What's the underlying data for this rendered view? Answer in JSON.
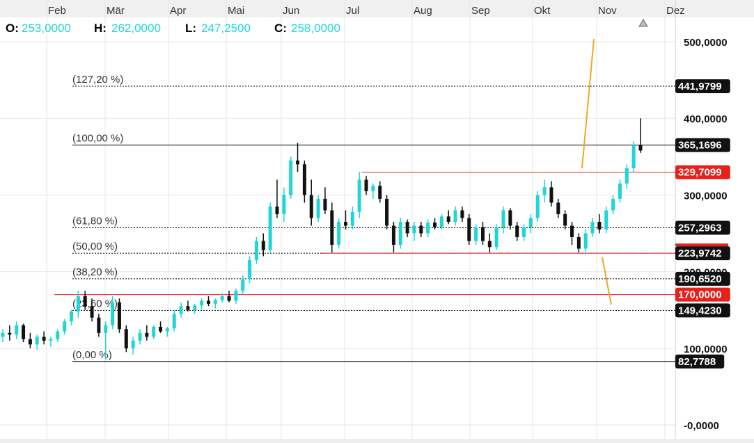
{
  "ohlc": {
    "open_label": "O:",
    "open_value": "253,0000",
    "high_label": "H:",
    "high_value": "262,0000",
    "low_label": "L:",
    "low_value": "247,2500",
    "close_label": "C:",
    "close_value": "258,0000"
  },
  "chart_data": {
    "type": "candlestick",
    "x_axis": {
      "months": [
        "Feb",
        "Mär",
        "Apr",
        "Mai",
        "Jun",
        "Jul",
        "Aug",
        "Sep",
        "Okt",
        "Nov",
        "Dez"
      ]
    },
    "y_axis": {
      "range": [
        0,
        520
      ],
      "ticks": [
        {
          "value": 500,
          "label": "500,0000"
        },
        {
          "value": 400,
          "label": "400,0000"
        },
        {
          "value": 300,
          "label": "300,0000"
        },
        {
          "value": 200,
          "label": "200,0000"
        },
        {
          "value": 100,
          "label": "100,0000"
        },
        {
          "value": 0,
          "label": "-0,0000"
        }
      ]
    },
    "fibonacci_levels": [
      {
        "label": "(127,20 %)",
        "value": 441.9799,
        "tag": "441,9799"
      },
      {
        "label": "(100,00 %)",
        "value": 365.1696,
        "tag": "365,1696"
      },
      {
        "label": "(61,80 %)",
        "value": 257.2963,
        "tag": "257,2963"
      },
      {
        "label": "(50,00 %)",
        "value": 223.9742,
        "tag": "223,9742"
      },
      {
        "label": "(38,20 %)",
        "value": 190.652,
        "tag": "190,6520"
      },
      {
        "label": "(23,60 %)",
        "value": 149.423,
        "tag": "149,4230"
      },
      {
        "label": "(0,00 %)",
        "value": 82.7788,
        "tag": "82,7788"
      }
    ],
    "horizontal_lines": [
      {
        "value": 329.7099,
        "tag": "329,7099",
        "color": "#e8201c"
      },
      {
        "value": 223.9742,
        "tag": "",
        "color": "#e8201c"
      },
      {
        "value": 170.0,
        "tag": "170,0000",
        "color": "#e8201c"
      }
    ],
    "colors": {
      "up": "#1fd6d6",
      "down": "#111111",
      "fib_line": "#000000",
      "red_line": "#e8201c",
      "trend_line": "#f5a623",
      "tag_dark": "#111111",
      "tag_red": "#e8201c",
      "grid": "#e6e6e6"
    },
    "candles": [
      [
        0.0,
        115,
        125,
        108,
        120
      ],
      [
        0.01,
        120,
        130,
        110,
        118
      ],
      [
        0.02,
        118,
        135,
        112,
        130
      ],
      [
        0.03,
        130,
        132,
        108,
        112
      ],
      [
        0.04,
        112,
        120,
        100,
        105
      ],
      [
        0.05,
        105,
        118,
        98,
        115
      ],
      [
        0.06,
        115,
        122,
        105,
        110
      ],
      [
        0.07,
        110,
        115,
        102,
        112
      ],
      [
        0.08,
        112,
        125,
        108,
        122
      ],
      [
        0.09,
        122,
        138,
        118,
        135
      ],
      [
        0.1,
        135,
        150,
        130,
        148
      ],
      [
        0.11,
        148,
        175,
        140,
        168
      ],
      [
        0.12,
        168,
        175,
        150,
        155
      ],
      [
        0.13,
        155,
        165,
        135,
        140
      ],
      [
        0.14,
        140,
        145,
        115,
        120
      ],
      [
        0.15,
        120,
        135,
        85,
        130
      ],
      [
        0.16,
        130,
        168,
        125,
        160
      ],
      [
        0.17,
        160,
        165,
        120,
        125
      ],
      [
        0.18,
        125,
        130,
        95,
        100
      ],
      [
        0.19,
        100,
        115,
        92,
        110
      ],
      [
        0.2,
        110,
        125,
        105,
        120
      ],
      [
        0.21,
        120,
        130,
        110,
        115
      ],
      [
        0.22,
        115,
        130,
        112,
        128
      ],
      [
        0.23,
        128,
        135,
        120,
        122
      ],
      [
        0.24,
        122,
        128,
        115,
        126
      ],
      [
        0.25,
        126,
        150,
        122,
        145
      ],
      [
        0.26,
        145,
        160,
        140,
        155
      ],
      [
        0.27,
        155,
        162,
        148,
        150
      ],
      [
        0.28,
        150,
        158,
        145,
        156
      ],
      [
        0.29,
        156,
        165,
        150,
        162
      ],
      [
        0.3,
        162,
        168,
        155,
        158
      ],
      [
        0.31,
        158,
        165,
        152,
        163
      ],
      [
        0.32,
        163,
        172,
        160,
        168
      ],
      [
        0.33,
        168,
        175,
        160,
        162
      ],
      [
        0.34,
        162,
        178,
        158,
        175
      ],
      [
        0.35,
        175,
        195,
        170,
        190
      ],
      [
        0.36,
        190,
        220,
        185,
        215
      ],
      [
        0.37,
        215,
        245,
        210,
        240
      ],
      [
        0.38,
        240,
        250,
        220,
        228
      ],
      [
        0.39,
        228,
        290,
        225,
        285
      ],
      [
        0.4,
        285,
        320,
        270,
        275
      ],
      [
        0.41,
        275,
        310,
        265,
        300
      ],
      [
        0.42,
        300,
        350,
        295,
        345
      ],
      [
        0.43,
        345,
        368,
        330,
        340
      ],
      [
        0.44,
        340,
        345,
        290,
        300
      ],
      [
        0.45,
        300,
        320,
        260,
        270
      ],
      [
        0.46,
        270,
        300,
        265,
        295
      ],
      [
        0.47,
        295,
        310,
        275,
        280
      ],
      [
        0.48,
        280,
        290,
        225,
        235
      ],
      [
        0.49,
        235,
        270,
        230,
        265
      ],
      [
        0.5,
        265,
        280,
        255,
        260
      ],
      [
        0.51,
        260,
        285,
        255,
        278
      ],
      [
        0.52,
        278,
        330,
        270,
        320
      ],
      [
        0.53,
        320,
        325,
        300,
        305
      ],
      [
        0.54,
        305,
        315,
        295,
        312
      ],
      [
        0.55,
        312,
        318,
        290,
        295
      ],
      [
        0.56,
        295,
        300,
        255,
        260
      ],
      [
        0.57,
        260,
        265,
        225,
        235
      ],
      [
        0.58,
        235,
        270,
        230,
        265
      ],
      [
        0.59,
        265,
        268,
        245,
        250
      ],
      [
        0.6,
        250,
        265,
        240,
        260
      ],
      [
        0.61,
        260,
        265,
        245,
        250
      ],
      [
        0.62,
        250,
        268,
        245,
        264
      ],
      [
        0.63,
        264,
        270,
        255,
        258
      ],
      [
        0.64,
        258,
        275,
        255,
        272
      ],
      [
        0.65,
        272,
        280,
        262,
        265
      ],
      [
        0.66,
        265,
        285,
        260,
        280
      ],
      [
        0.67,
        280,
        285,
        265,
        270
      ],
      [
        0.68,
        270,
        275,
        235,
        240
      ],
      [
        0.69,
        240,
        262,
        235,
        258
      ],
      [
        0.7,
        258,
        265,
        235,
        240
      ],
      [
        0.71,
        240,
        250,
        225,
        232
      ],
      [
        0.72,
        232,
        262,
        228,
        258
      ],
      [
        0.73,
        258,
        285,
        250,
        280
      ],
      [
        0.74,
        280,
        283,
        255,
        260
      ],
      [
        0.75,
        260,
        265,
        240,
        245
      ],
      [
        0.76,
        245,
        262,
        240,
        258
      ],
      [
        0.77,
        258,
        275,
        250,
        270
      ],
      [
        0.78,
        270,
        305,
        265,
        300
      ],
      [
        0.79,
        300,
        320,
        290,
        310
      ],
      [
        0.8,
        310,
        318,
        285,
        290
      ],
      [
        0.81,
        290,
        295,
        270,
        275
      ],
      [
        0.82,
        275,
        280,
        255,
        260
      ],
      [
        0.83,
        260,
        265,
        235,
        245
      ],
      [
        0.84,
        245,
        250,
        225,
        230
      ],
      [
        0.85,
        230,
        255,
        222,
        250
      ],
      [
        0.86,
        250,
        270,
        245,
        265
      ],
      [
        0.87,
        265,
        275,
        250,
        255
      ],
      [
        0.88,
        255,
        285,
        250,
        280
      ],
      [
        0.89,
        280,
        300,
        275,
        295
      ],
      [
        0.9,
        295,
        320,
        290,
        315
      ],
      [
        0.91,
        315,
        340,
        308,
        335
      ],
      [
        0.92,
        335,
        370,
        330,
        365
      ],
      [
        0.93,
        365,
        400,
        355,
        358
      ]
    ]
  }
}
